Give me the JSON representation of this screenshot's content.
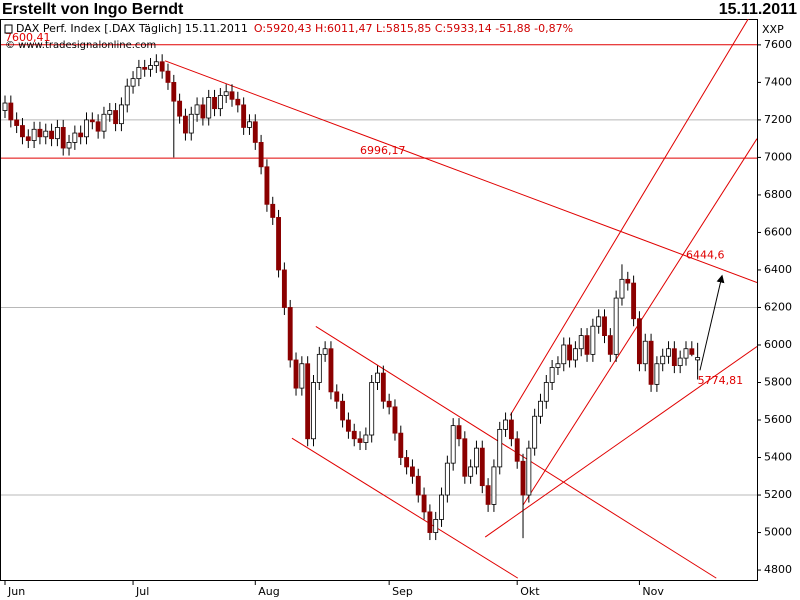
{
  "chart_data": {
    "type": "candlestick",
    "header_title": "Erstellt von Ingo Berndt",
    "date": "15.11.2011",
    "instrument": "DAX Perf. Index [.DAX Täglich] 15.11.2011",
    "ohlc_text": "O:5920,43 H:6011,47 L:5815,85 C:5933,14 -51,88 -0,87%",
    "copyright": "© www.tradesignalonline.com",
    "unit": "XXP",
    "categories": [
      "Jun",
      null,
      null,
      null,
      null,
      null,
      null,
      null,
      null,
      null,
      null,
      null,
      null,
      null,
      null,
      null,
      null,
      null,
      null,
      null,
      null,
      null,
      "Jul",
      null,
      null,
      null,
      null,
      null,
      null,
      null,
      null,
      null,
      null,
      null,
      null,
      null,
      null,
      null,
      null,
      null,
      null,
      null,
      null,
      "Aug",
      null,
      null,
      null,
      null,
      null,
      null,
      null,
      null,
      null,
      null,
      null,
      null,
      null,
      null,
      null,
      null,
      null,
      null,
      null,
      null,
      null,
      null,
      "Sep",
      null,
      null,
      null,
      null,
      null,
      null,
      null,
      null,
      null,
      null,
      null,
      null,
      null,
      null,
      null,
      null,
      null,
      null,
      null,
      null,
      null,
      "Okt",
      null,
      null,
      null,
      null,
      null,
      null,
      null,
      null,
      null,
      null,
      null,
      null,
      null,
      null,
      null,
      null,
      null,
      null,
      null,
      null,
      "Nov",
      null,
      null,
      null,
      null,
      null,
      null,
      null,
      null,
      null,
      null
    ],
    "open": [
      7250,
      7290,
      7200,
      7170,
      7110,
      7090,
      7150,
      7110,
      7140,
      7100,
      7160,
      7050,
      7080,
      7130,
      7110,
      7200,
      7190,
      7140,
      7230,
      7250,
      7180,
      7280,
      7380,
      7420,
      7480,
      7470,
      7490,
      7510,
      7460,
      7400,
      7300,
      7220,
      7130,
      7230,
      7280,
      7210,
      7320,
      7260,
      7330,
      7350,
      7310,
      7280,
      7160,
      7190,
      7080,
      6950,
      6750,
      6680,
      6400,
      6200,
      5920,
      5770,
      5900,
      5500,
      5800,
      5950,
      5980,
      5750,
      5700,
      5600,
      5540,
      5500,
      5480,
      5520,
      5800,
      5850,
      5700,
      5670,
      5530,
      5400,
      5350,
      5300,
      5200,
      5110,
      5000,
      5070,
      5200,
      5370,
      5570,
      5500,
      5300,
      5350,
      5450,
      5250,
      5150,
      5350,
      5550,
      5600,
      5500,
      5380,
      5200,
      5450,
      5620,
      5700,
      5800,
      5880,
      5900,
      6000,
      5920,
      5980,
      6050,
      5950,
      6100,
      6150,
      6050,
      5950,
      6250,
      6350,
      6330,
      6140,
      5900,
      6020,
      5790,
      5900,
      5940,
      5980,
      5890,
      5930,
      5980,
      5920.43
    ],
    "high": [
      7330,
      7330,
      7240,
      7210,
      7150,
      7190,
      7190,
      7180,
      7180,
      7200,
      7200,
      7120,
      7170,
      7170,
      7240,
      7240,
      7230,
      7270,
      7290,
      7290,
      7320,
      7420,
      7460,
      7520,
      7520,
      7530,
      7550,
      7550,
      7500,
      7440,
      7340,
      7260,
      7270,
      7320,
      7320,
      7360,
      7360,
      7370,
      7390,
      7390,
      7350,
      7320,
      7230,
      7230,
      7120,
      6990,
      6790,
      6720,
      6440,
      6240,
      5960,
      5940,
      5940,
      5840,
      5990,
      6020,
      6020,
      5790,
      5740,
      5640,
      5580,
      5540,
      5560,
      5840,
      5890,
      5890,
      5740,
      5710,
      5570,
      5440,
      5390,
      5340,
      5240,
      5150,
      5110,
      5240,
      5410,
      5610,
      5610,
      5540,
      5390,
      5490,
      5490,
      5290,
      5390,
      5590,
      5640,
      5640,
      5540,
      5420,
      5490,
      5660,
      5740,
      5840,
      5920,
      5940,
      6040,
      6040,
      6020,
      6090,
      6090,
      6140,
      6190,
      6190,
      6090,
      6290,
      6430,
      6390,
      6370,
      6180,
      6060,
      6060,
      5940,
      5980,
      6020,
      6020,
      5970,
      6020,
      6020,
      6011.47
    ],
    "low": [
      7210,
      7160,
      7130,
      7070,
      7050,
      7050,
      7070,
      7070,
      7060,
      7060,
      7010,
      7010,
      7040,
      7070,
      7070,
      7150,
      7100,
      7100,
      7190,
      7140,
      7140,
      7240,
      7340,
      7380,
      7430,
      7430,
      7450,
      7420,
      7360,
      7000,
      7180,
      7090,
      7090,
      7190,
      7170,
      7170,
      7220,
      7220,
      7290,
      7270,
      7240,
      7120,
      7120,
      7040,
      6910,
      6710,
      6640,
      6360,
      6160,
      5880,
      5730,
      5730,
      5460,
      5460,
      5760,
      5910,
      5710,
      5660,
      5560,
      5500,
      5460,
      5440,
      5440,
      5480,
      5760,
      5660,
      5630,
      5490,
      5360,
      5310,
      5260,
      5160,
      5070,
      4960,
      4960,
      5030,
      5160,
      5330,
      5460,
      5260,
      5260,
      5310,
      5210,
      5110,
      5110,
      5310,
      5510,
      5460,
      5340,
      4970,
      5160,
      5410,
      5580,
      5660,
      5760,
      5840,
      5860,
      5880,
      5880,
      5940,
      5910,
      5910,
      6060,
      6010,
      5910,
      5910,
      6210,
      6290,
      6100,
      5860,
      5860,
      5750,
      5750,
      5860,
      5900,
      5850,
      5850,
      5890,
      5940,
      5815.85
    ],
    "close": [
      7290,
      7200,
      7170,
      7110,
      7090,
      7150,
      7110,
      7140,
      7100,
      7160,
      7050,
      7080,
      7130,
      7110,
      7200,
      7190,
      7140,
      7230,
      7250,
      7180,
      7280,
      7380,
      7420,
      7480,
      7470,
      7490,
      7510,
      7460,
      7400,
      7300,
      7220,
      7130,
      7230,
      7280,
      7210,
      7320,
      7260,
      7330,
      7350,
      7310,
      7280,
      7160,
      7190,
      7080,
      6950,
      6750,
      6680,
      6400,
      6200,
      5920,
      5770,
      5900,
      5500,
      5800,
      5950,
      5980,
      5750,
      5700,
      5600,
      5540,
      5500,
      5480,
      5520,
      5800,
      5850,
      5700,
      5670,
      5530,
      5400,
      5350,
      5300,
      5200,
      5110,
      5000,
      5070,
      5200,
      5370,
      5570,
      5500,
      5300,
      5350,
      5450,
      5250,
      5150,
      5350,
      5550,
      5600,
      5500,
      5380,
      5200,
      5450,
      5620,
      5700,
      5800,
      5880,
      5900,
      6000,
      5920,
      5980,
      6050,
      5950,
      6100,
      6150,
      6050,
      5950,
      6250,
      6350,
      6330,
      6140,
      5900,
      6020,
      5790,
      5900,
      5940,
      5980,
      5890,
      5930,
      5980,
      5950,
      5933.14
    ],
    "up_color": "#ffffff",
    "down_color": "#8b0000",
    "line_color": "#e00000",
    "xlim": [
      -0.86,
      129.2
    ],
    "ylim": [
      4747,
      7738
    ],
    "yticks": [
      4800,
      5000,
      5200,
      5400,
      5600,
      5800,
      6000,
      6200,
      6400,
      6600,
      6800,
      7000,
      7200,
      7400,
      7600
    ],
    "grid_values": [
      7200,
      6200,
      5200
    ],
    "hlines": [
      {
        "value": 7600.41,
        "label": "7600,41"
      },
      {
        "value": 6996.17,
        "label": "6996,17"
      }
    ],
    "trendlines": [
      {
        "x1": 27.5,
        "y1": 7515,
        "x2": 129.2,
        "y2": 6333
      },
      {
        "x1": 53.4,
        "y1": 6099,
        "x2": 122.2,
        "y2": 4757
      },
      {
        "x1": 49.3,
        "y1": 5503,
        "x2": 88.1,
        "y2": 4757
      },
      {
        "x1": 89,
        "y1": 5146,
        "x2": 129.2,
        "y2": 7100
      },
      {
        "x1": 86.8,
        "y1": 5625,
        "x2": 128,
        "y2": 7754
      },
      {
        "x1": 82.5,
        "y1": 4976,
        "x2": 129.2,
        "y2": 5992
      }
    ],
    "arrow": {
      "x1": 119.4,
      "y1": 5865,
      "x2": 123.2,
      "y2": 6370
    },
    "annotations": [
      {
        "value": 6444.6,
        "label": "6444,6",
        "x": 117
      },
      {
        "value": 5774.81,
        "label": "5774,81",
        "x": 119
      }
    ]
  }
}
